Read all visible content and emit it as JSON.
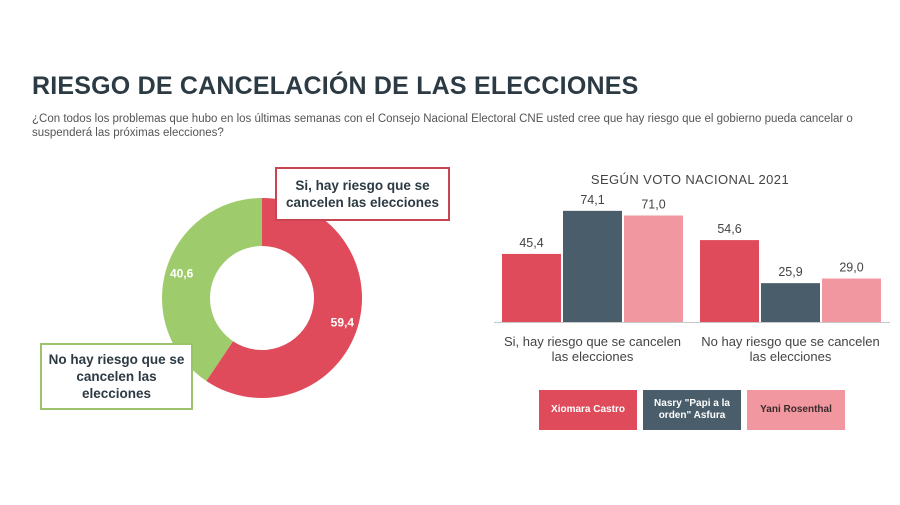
{
  "header": {
    "title": "RIESGO DE CANCELACIÓN DE LAS ELECCIONES",
    "question": "¿Con todos los problemas que hubo en los últimas semanas con el Consejo Nacional Electoral CNE usted cree que hay riesgo que el gobierno pueda cancelar o suspenderá las próximas elecciones?"
  },
  "chart_data": [
    {
      "type": "pie",
      "labels": [
        "Si, hay riesgo que se cancelen las elecciones",
        "No hay riesgo que se cancelen las elecciones"
      ],
      "values": [
        59.4,
        40.6
      ],
      "value_labels": [
        "59,4",
        "40,6"
      ],
      "colors": [
        "#e04b5b",
        "#9ecb6b"
      ]
    },
    {
      "type": "bar",
      "title": "SEGÚN VOTO NACIONAL 2021",
      "categories": [
        "Si, hay riesgo que se cancelen las elecciones",
        "No hay riesgo que se cancelen las elecciones"
      ],
      "series": [
        {
          "name": "Xiomara Castro",
          "values": [
            45.4,
            54.6
          ],
          "value_labels": [
            "45,4",
            "54,6"
          ],
          "color": "#e04b5b"
        },
        {
          "name": "Nasry \"Papi a la orden\" Asfura",
          "values": [
            74.1,
            25.9
          ],
          "value_labels": [
            "74,1",
            "25,9"
          ],
          "color": "#4a5d6b"
        },
        {
          "name": "Yani Rosenthal",
          "values": [
            71.0,
            29.0
          ],
          "value_labels": [
            "71,0",
            "29,0"
          ],
          "color": "#f0979f"
        }
      ],
      "ylim": [
        0,
        80
      ]
    }
  ]
}
